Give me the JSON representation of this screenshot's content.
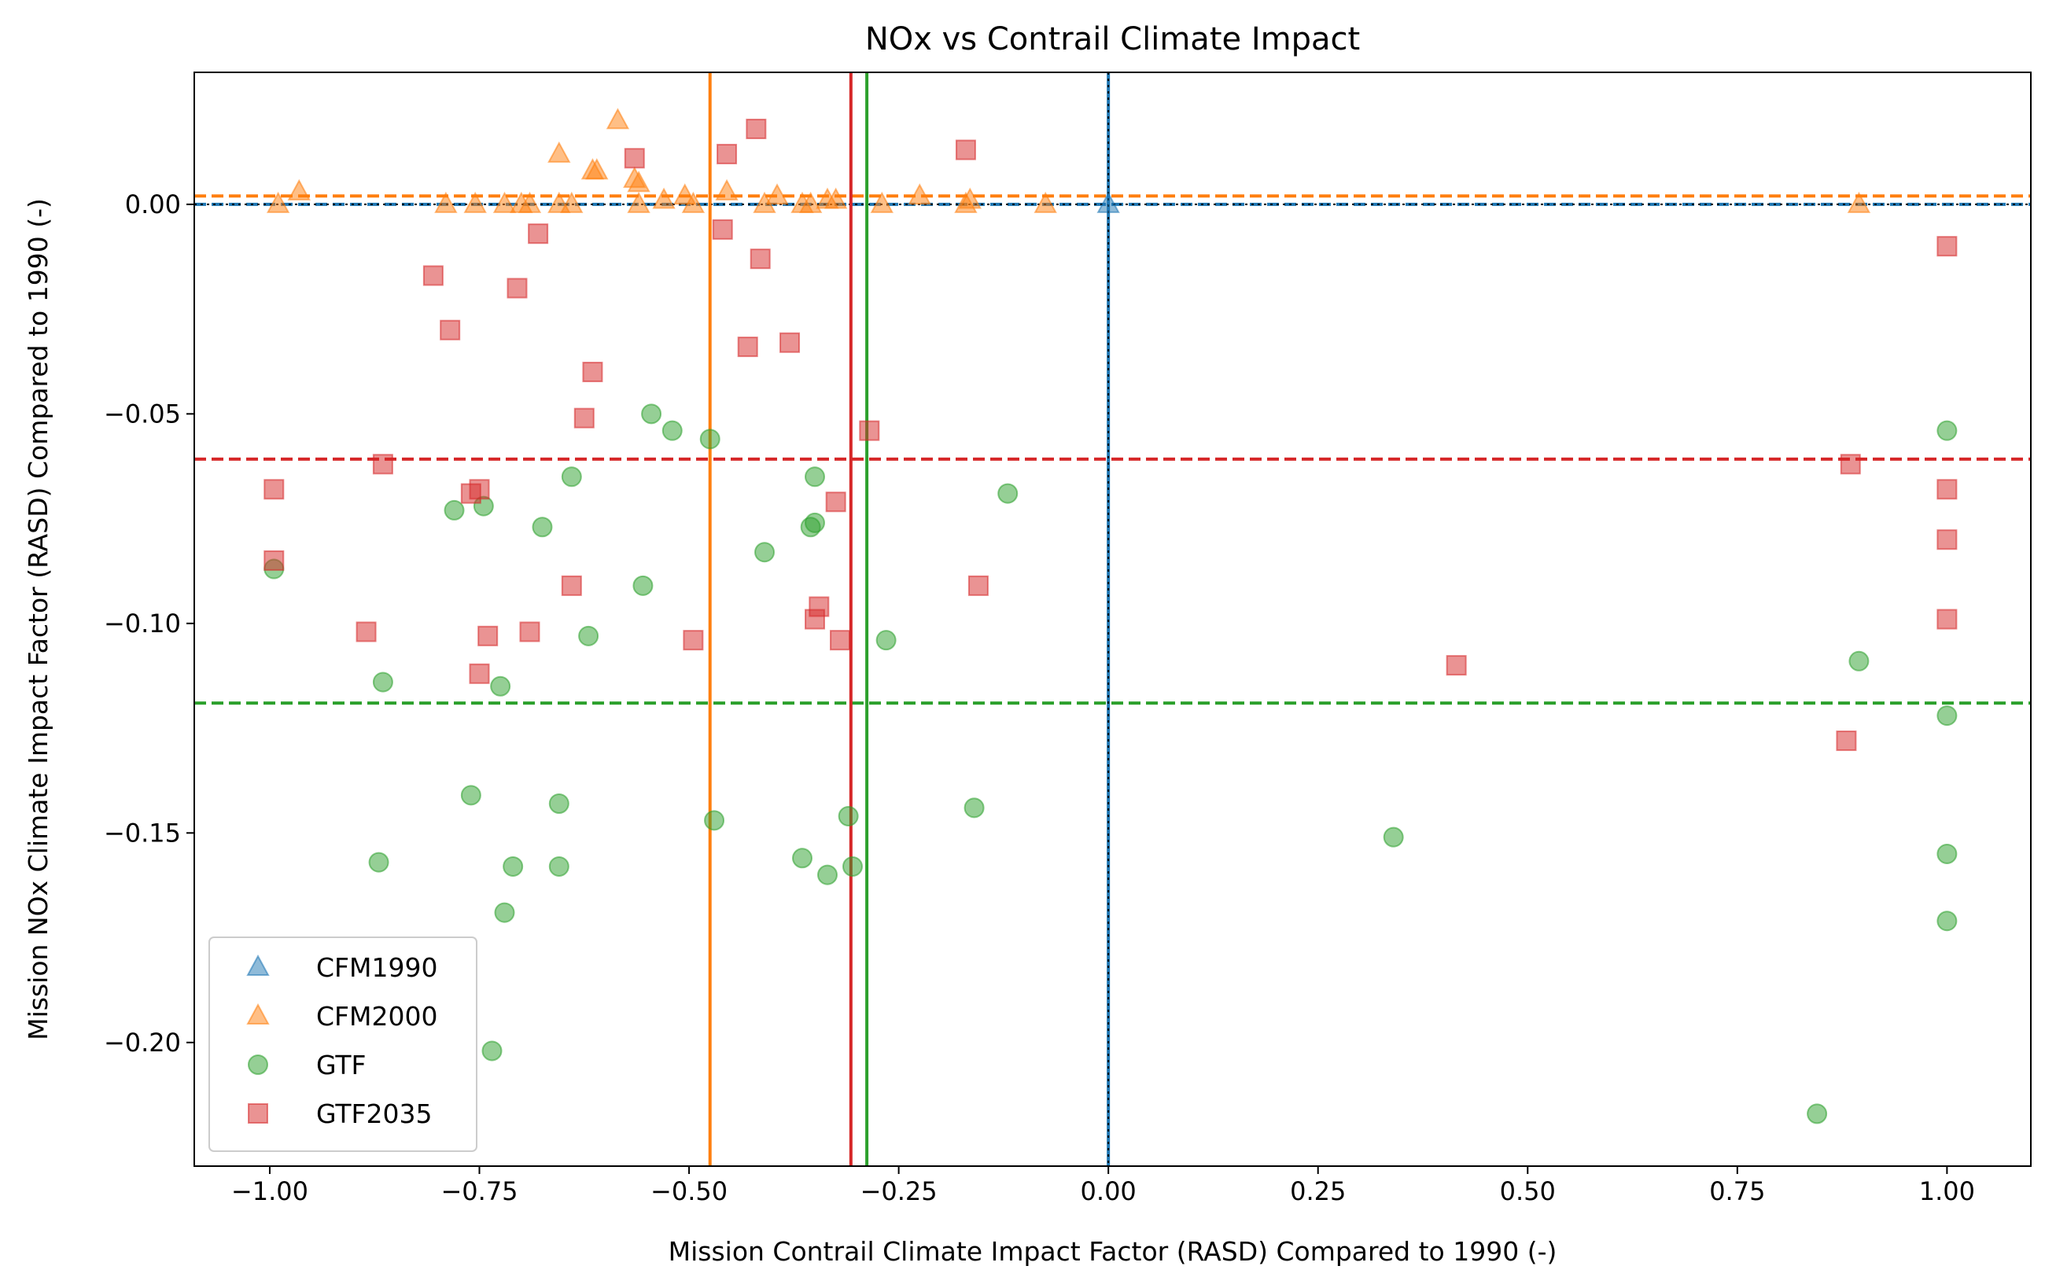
{
  "chart_data": {
    "type": "scatter",
    "title": "NOx vs Contrail Climate Impact",
    "xlabel": "Mission Contrail Climate Impact Factor (RASD) Compared to 1990 (-)",
    "ylabel": "Mission NOx Climate Impact Factor (RASD) Compared to 1990 (-)",
    "xlim": [
      -1.09,
      1.1
    ],
    "ylim": [
      -0.2295,
      0.0315
    ],
    "xticks": [
      -1.0,
      -0.75,
      -0.5,
      -0.25,
      0.0,
      0.25,
      0.5,
      0.75,
      1.0
    ],
    "xtick_labels": [
      "−1.00",
      "−0.75",
      "−0.50",
      "−0.25",
      "0.00",
      "0.25",
      "0.50",
      "0.75",
      "1.00"
    ],
    "yticks": [
      0.0,
      -0.05,
      -0.1,
      -0.15,
      -0.2
    ],
    "ytick_labels": [
      "0.00",
      "−0.05",
      "−0.10",
      "−0.15",
      "−0.20"
    ],
    "grid": false,
    "legend_position": "bottom-left",
    "series": [
      {
        "name": "CFM1990",
        "marker": "triangle",
        "color": "#1f77b4",
        "points": [
          [
            0.0,
            0.0
          ]
        ]
      },
      {
        "name": "CFM2000",
        "marker": "triangle",
        "color": "#ff7f0e",
        "points": [
          [
            -0.99,
            0.0
          ],
          [
            -0.965,
            0.003
          ],
          [
            -0.79,
            0.0
          ],
          [
            -0.755,
            0.0
          ],
          [
            -0.72,
            0.0
          ],
          [
            -0.7,
            0.0
          ],
          [
            -0.69,
            0.0
          ],
          [
            -0.655,
            0.0
          ],
          [
            -0.64,
            0.0
          ],
          [
            -0.655,
            0.012
          ],
          [
            -0.615,
            0.008
          ],
          [
            -0.61,
            0.008
          ],
          [
            -0.585,
            0.02
          ],
          [
            -0.565,
            0.006
          ],
          [
            -0.56,
            0.005
          ],
          [
            -0.56,
            0.0
          ],
          [
            -0.53,
            0.001
          ],
          [
            -0.505,
            0.002
          ],
          [
            -0.495,
            0.0
          ],
          [
            -0.455,
            0.003
          ],
          [
            -0.41,
            0.0
          ],
          [
            -0.395,
            0.002
          ],
          [
            -0.365,
            0.0
          ],
          [
            -0.355,
            0.0
          ],
          [
            -0.335,
            0.001
          ],
          [
            -0.325,
            0.001
          ],
          [
            -0.27,
            0.0
          ],
          [
            -0.225,
            0.002
          ],
          [
            -0.17,
            0.0
          ],
          [
            -0.165,
            0.001
          ],
          [
            -0.075,
            0.0
          ],
          [
            0.895,
            0.0
          ]
        ]
      },
      {
        "name": "GTF",
        "marker": "circle",
        "color": "#2ca02c",
        "points": [
          [
            -0.995,
            -0.087
          ],
          [
            -0.87,
            -0.157
          ],
          [
            -0.865,
            -0.114
          ],
          [
            -0.78,
            -0.073
          ],
          [
            -0.76,
            -0.141
          ],
          [
            -0.745,
            -0.072
          ],
          [
            -0.735,
            -0.202
          ],
          [
            -0.725,
            -0.115
          ],
          [
            -0.72,
            -0.169
          ],
          [
            -0.71,
            -0.158
          ],
          [
            -0.675,
            -0.077
          ],
          [
            -0.655,
            -0.143
          ],
          [
            -0.655,
            -0.158
          ],
          [
            -0.64,
            -0.065
          ],
          [
            -0.62,
            -0.103
          ],
          [
            -0.545,
            -0.05
          ],
          [
            -0.555,
            -0.091
          ],
          [
            -0.52,
            -0.054
          ],
          [
            -0.475,
            -0.056
          ],
          [
            -0.47,
            -0.147
          ],
          [
            -0.41,
            -0.083
          ],
          [
            -0.365,
            -0.156
          ],
          [
            -0.355,
            -0.077
          ],
          [
            -0.35,
            -0.076
          ],
          [
            -0.35,
            -0.065
          ],
          [
            -0.335,
            -0.16
          ],
          [
            -0.31,
            -0.146
          ],
          [
            -0.305,
            -0.158
          ],
          [
            -0.265,
            -0.104
          ],
          [
            -0.16,
            -0.144
          ],
          [
            -0.12,
            -0.069
          ],
          [
            0.34,
            -0.151
          ],
          [
            0.845,
            -0.217
          ],
          [
            0.895,
            -0.109
          ],
          [
            1.0,
            -0.054
          ],
          [
            1.0,
            -0.122
          ],
          [
            1.0,
            -0.155
          ],
          [
            1.0,
            -0.171
          ]
        ]
      },
      {
        "name": "GTF2035",
        "marker": "square",
        "color": "#d62728",
        "points": [
          [
            -0.995,
            -0.068
          ],
          [
            -0.995,
            -0.085
          ],
          [
            -0.885,
            -0.102
          ],
          [
            -0.865,
            -0.062
          ],
          [
            -0.805,
            -0.017
          ],
          [
            -0.785,
            -0.03
          ],
          [
            -0.76,
            -0.069
          ],
          [
            -0.75,
            -0.068
          ],
          [
            -0.75,
            -0.112
          ],
          [
            -0.74,
            -0.103
          ],
          [
            -0.705,
            -0.02
          ],
          [
            -0.69,
            -0.102
          ],
          [
            -0.68,
            -0.007
          ],
          [
            -0.64,
            -0.091
          ],
          [
            -0.625,
            -0.051
          ],
          [
            -0.615,
            -0.04
          ],
          [
            -0.565,
            0.011
          ],
          [
            -0.495,
            -0.104
          ],
          [
            -0.46,
            -0.006
          ],
          [
            -0.455,
            0.012
          ],
          [
            -0.43,
            -0.034
          ],
          [
            -0.42,
            0.018
          ],
          [
            -0.415,
            -0.013
          ],
          [
            -0.38,
            -0.033
          ],
          [
            -0.35,
            -0.099
          ],
          [
            -0.345,
            -0.096
          ],
          [
            -0.325,
            -0.071
          ],
          [
            -0.32,
            -0.104
          ],
          [
            -0.285,
            -0.054
          ],
          [
            -0.17,
            0.013
          ],
          [
            -0.155,
            -0.091
          ],
          [
            0.415,
            -0.11
          ],
          [
            0.88,
            -0.128
          ],
          [
            0.885,
            -0.062
          ],
          [
            1.0,
            -0.01
          ],
          [
            1.0,
            -0.068
          ],
          [
            1.0,
            -0.08
          ],
          [
            1.0,
            -0.099
          ]
        ]
      }
    ],
    "reference_lines": [
      {
        "orientation": "horizontal",
        "value": 0.0,
        "color": "#1f77b4",
        "style": "dashed"
      },
      {
        "orientation": "horizontal",
        "value": 0.002,
        "color": "#ff7f0e",
        "style": "dashed"
      },
      {
        "orientation": "horizontal",
        "value": -0.0608,
        "color": "#d62728",
        "style": "dashed"
      },
      {
        "orientation": "horizontal",
        "value": -0.119,
        "color": "#2ca02c",
        "style": "dashed"
      },
      {
        "orientation": "horizontal",
        "value": 0.0,
        "color": "#000000",
        "style": "dotted"
      },
      {
        "orientation": "vertical",
        "value": 0.0,
        "color": "#1f77b4",
        "style": "solid"
      },
      {
        "orientation": "vertical",
        "value": 0.0,
        "color": "#000000",
        "style": "dotted"
      },
      {
        "orientation": "vertical",
        "value": -0.475,
        "color": "#ff7f0e",
        "style": "solid"
      },
      {
        "orientation": "vertical",
        "value": -0.307,
        "color": "#d62728",
        "style": "solid"
      },
      {
        "orientation": "vertical",
        "value": -0.288,
        "color": "#2ca02c",
        "style": "solid"
      }
    ]
  }
}
